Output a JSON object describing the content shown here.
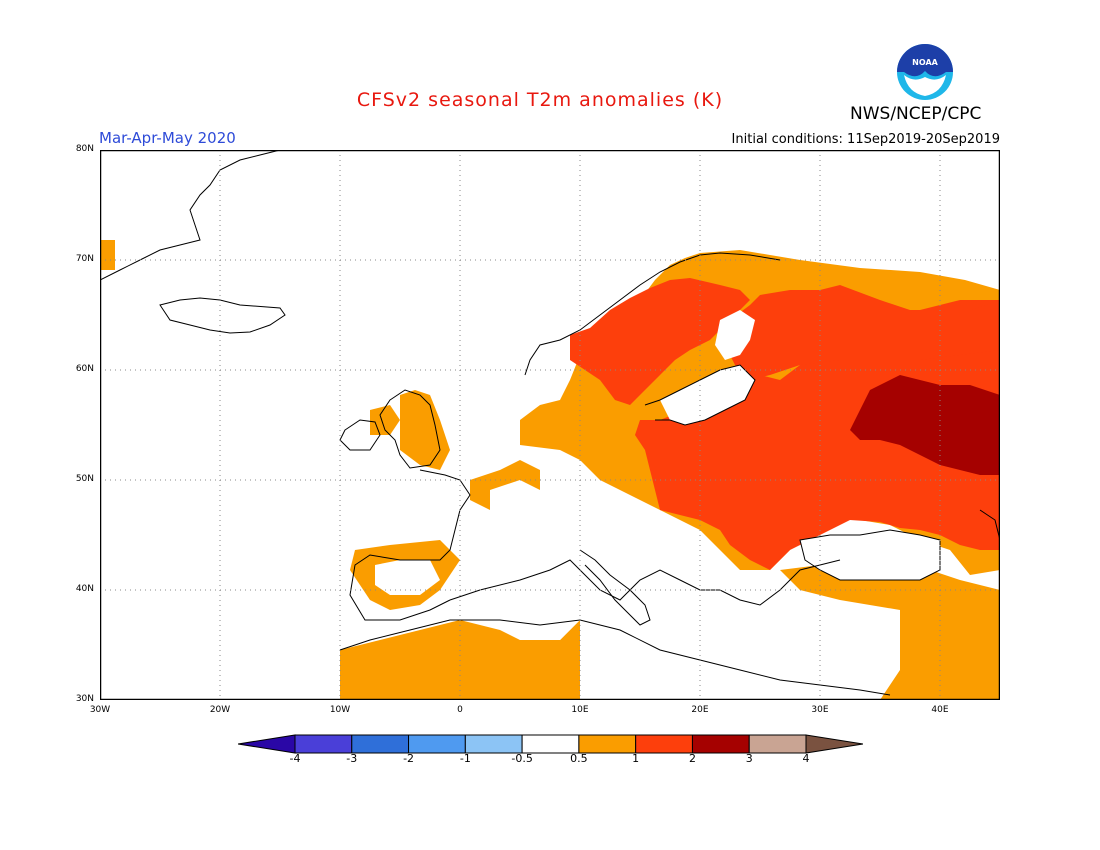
{
  "header": {
    "title": "CFSv2 seasonal T2m anomalies (K)",
    "season": "Mar-Apr-May 2020",
    "initial_conditions": "Initial conditions: 11Sep2019-20Sep2019",
    "agency": "NWS/NCEP/CPC",
    "logo_text": "NOAA"
  },
  "map": {
    "lat_labels": [
      "80N",
      "70N",
      "60N",
      "50N",
      "40N",
      "30N"
    ],
    "lon_labels": [
      "30W",
      "20W",
      "10W",
      "0",
      "10E",
      "20E",
      "30E",
      "40E"
    ],
    "extent": {
      "lon": [
        -30,
        45
      ],
      "lat": [
        30,
        80
      ]
    },
    "anomaly_regions": [
      {
        "area": "Western Russia",
        "category": "3"
      },
      {
        "area": "Eastern Europe and Russia",
        "category": "2"
      },
      {
        "area": "Scandinavia",
        "category": "2"
      },
      {
        "area": "Central and Western Europe",
        "category": "1"
      },
      {
        "area": "Iberia and North Africa",
        "category": "1"
      },
      {
        "area": "Turkey and Middle East",
        "category": "1"
      }
    ]
  },
  "colorbar": {
    "labels": [
      "-4",
      "-3",
      "-2",
      "-1",
      "-0.5",
      "0.5",
      "1",
      "2",
      "3",
      "4"
    ],
    "colors": [
      "#2a07a6",
      "#4a3fd8",
      "#2f6fd9",
      "#4f9af0",
      "#8cc4f5",
      "#ffffff",
      "#fa9d00",
      "#fd3f0c",
      "#a50100",
      "#c9a493",
      "#7a5240"
    ]
  },
  "colors": {
    "c1": "#fa9d00",
    "c2": "#fd3f0c",
    "c3": "#a50100",
    "title": "#e8180f",
    "season": "#2e4bd8"
  }
}
